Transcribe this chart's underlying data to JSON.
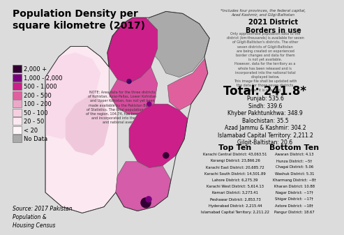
{
  "bg_color": "#dcdcdc",
  "title": "Population Density per\nsquare kilometre (2017)",
  "title_fontsize": 10,
  "map_note": "*Includes four provinces, the federal capital,\nAzad Kashmir, and Gilgi-Baltistan",
  "district_note": "2021 District\nBorders in use",
  "side_note": "Only approximate population data to the\ndistrict (km-thousands) is available for seven\nof Gilgit-Baltistan's districts. The other\nseven districts of Gilgit-Baltistan\nare being created on experienced\nborder changes and data for them\nis not yet available.\nHowever, data for the territory as a\nwhole has been released and is\nincorporated into the national total\ndisplayed below.\nThis image file shall be updated with\nthe data for those seven districts\nwhen it is released.",
  "total_label": "Total: 241.8*",
  "province_stats": [
    "Punjab: 535.6",
    "Sindh: 339.6",
    "Khyber Pakhtunkhwa: 348.9",
    "Balochistan: 35.5",
    "Azad Jammu & Kashmir: 304.2",
    "Islamabad Capital Territory: 2,211.2",
    "Gilgit-Baltistan: 20.6"
  ],
  "top_ten_title": "Top Ten",
  "top_ten": [
    "Karachi Central District: 43,063.51",
    "Korangi District: 23,866.26",
    "Karachi East District: 20,685.72",
    "Karachi South District: 14,501.89",
    "Lahore District: 6,275.39",
    "Karachi West District: 5,614.13",
    "Kemari District: 3,273.41",
    "Peshawar District: 2,853.73",
    "Hyderabad District: 2,215.44",
    "Islamabad Capital Territory: 2,211.22"
  ],
  "bottom_ten_title": "Bottom Ten",
  "bottom_ten": [
    "Awaran District: 4.13",
    "Hunza District: ~5†",
    "Chagai District: 5.06",
    "Washuk District: 5.31",
    "Kharmang District: ~8†",
    "Kharan District: 10.88",
    "Nagar District: ~17†",
    "Shigar District: ~17†",
    "Astore District: ~18†",
    "Pangur District: 18.67"
  ],
  "source_text": "Source: 2017 Pakistan\nPopulation &\nHousing Census",
  "legend_items": [
    {
      "label": "2,000 +",
      "color": "#330033"
    },
    {
      "label": "1,000 - 2,000",
      "color": "#7b0080"
    },
    {
      "label": "500 - 1,000",
      "color": "#cc1f8a"
    },
    {
      "label": "200 - 500",
      "color": "#e0609e"
    },
    {
      "label": "100 - 200",
      "color": "#eca8c8"
    },
    {
      "label": "50 - 100",
      "color": "#f5cfe0"
    },
    {
      "label": "20 - 50",
      "color": "#fce8f0"
    },
    {
      "label": "< 20",
      "color": "#fff4f8"
    },
    {
      "label": "No Data",
      "color": "#aaaaaa"
    }
  ],
  "map_regions": {
    "gilgit_gray": {
      "color": "#aaaaaa"
    },
    "azad_kashmir": {
      "color": "#e0609e"
    },
    "kpk_north": {
      "color": "#cc1f8a"
    },
    "punjab": {
      "color": "#cc1f8a"
    },
    "sindh": {
      "color": "#e0609e"
    },
    "balochistan": {
      "color": "#fce8f0"
    },
    "balochistan2": {
      "color": "#fce8f0"
    },
    "karachi_dark": {
      "color": "#330033"
    },
    "lahore_dark": {
      "color": "#330033"
    }
  }
}
